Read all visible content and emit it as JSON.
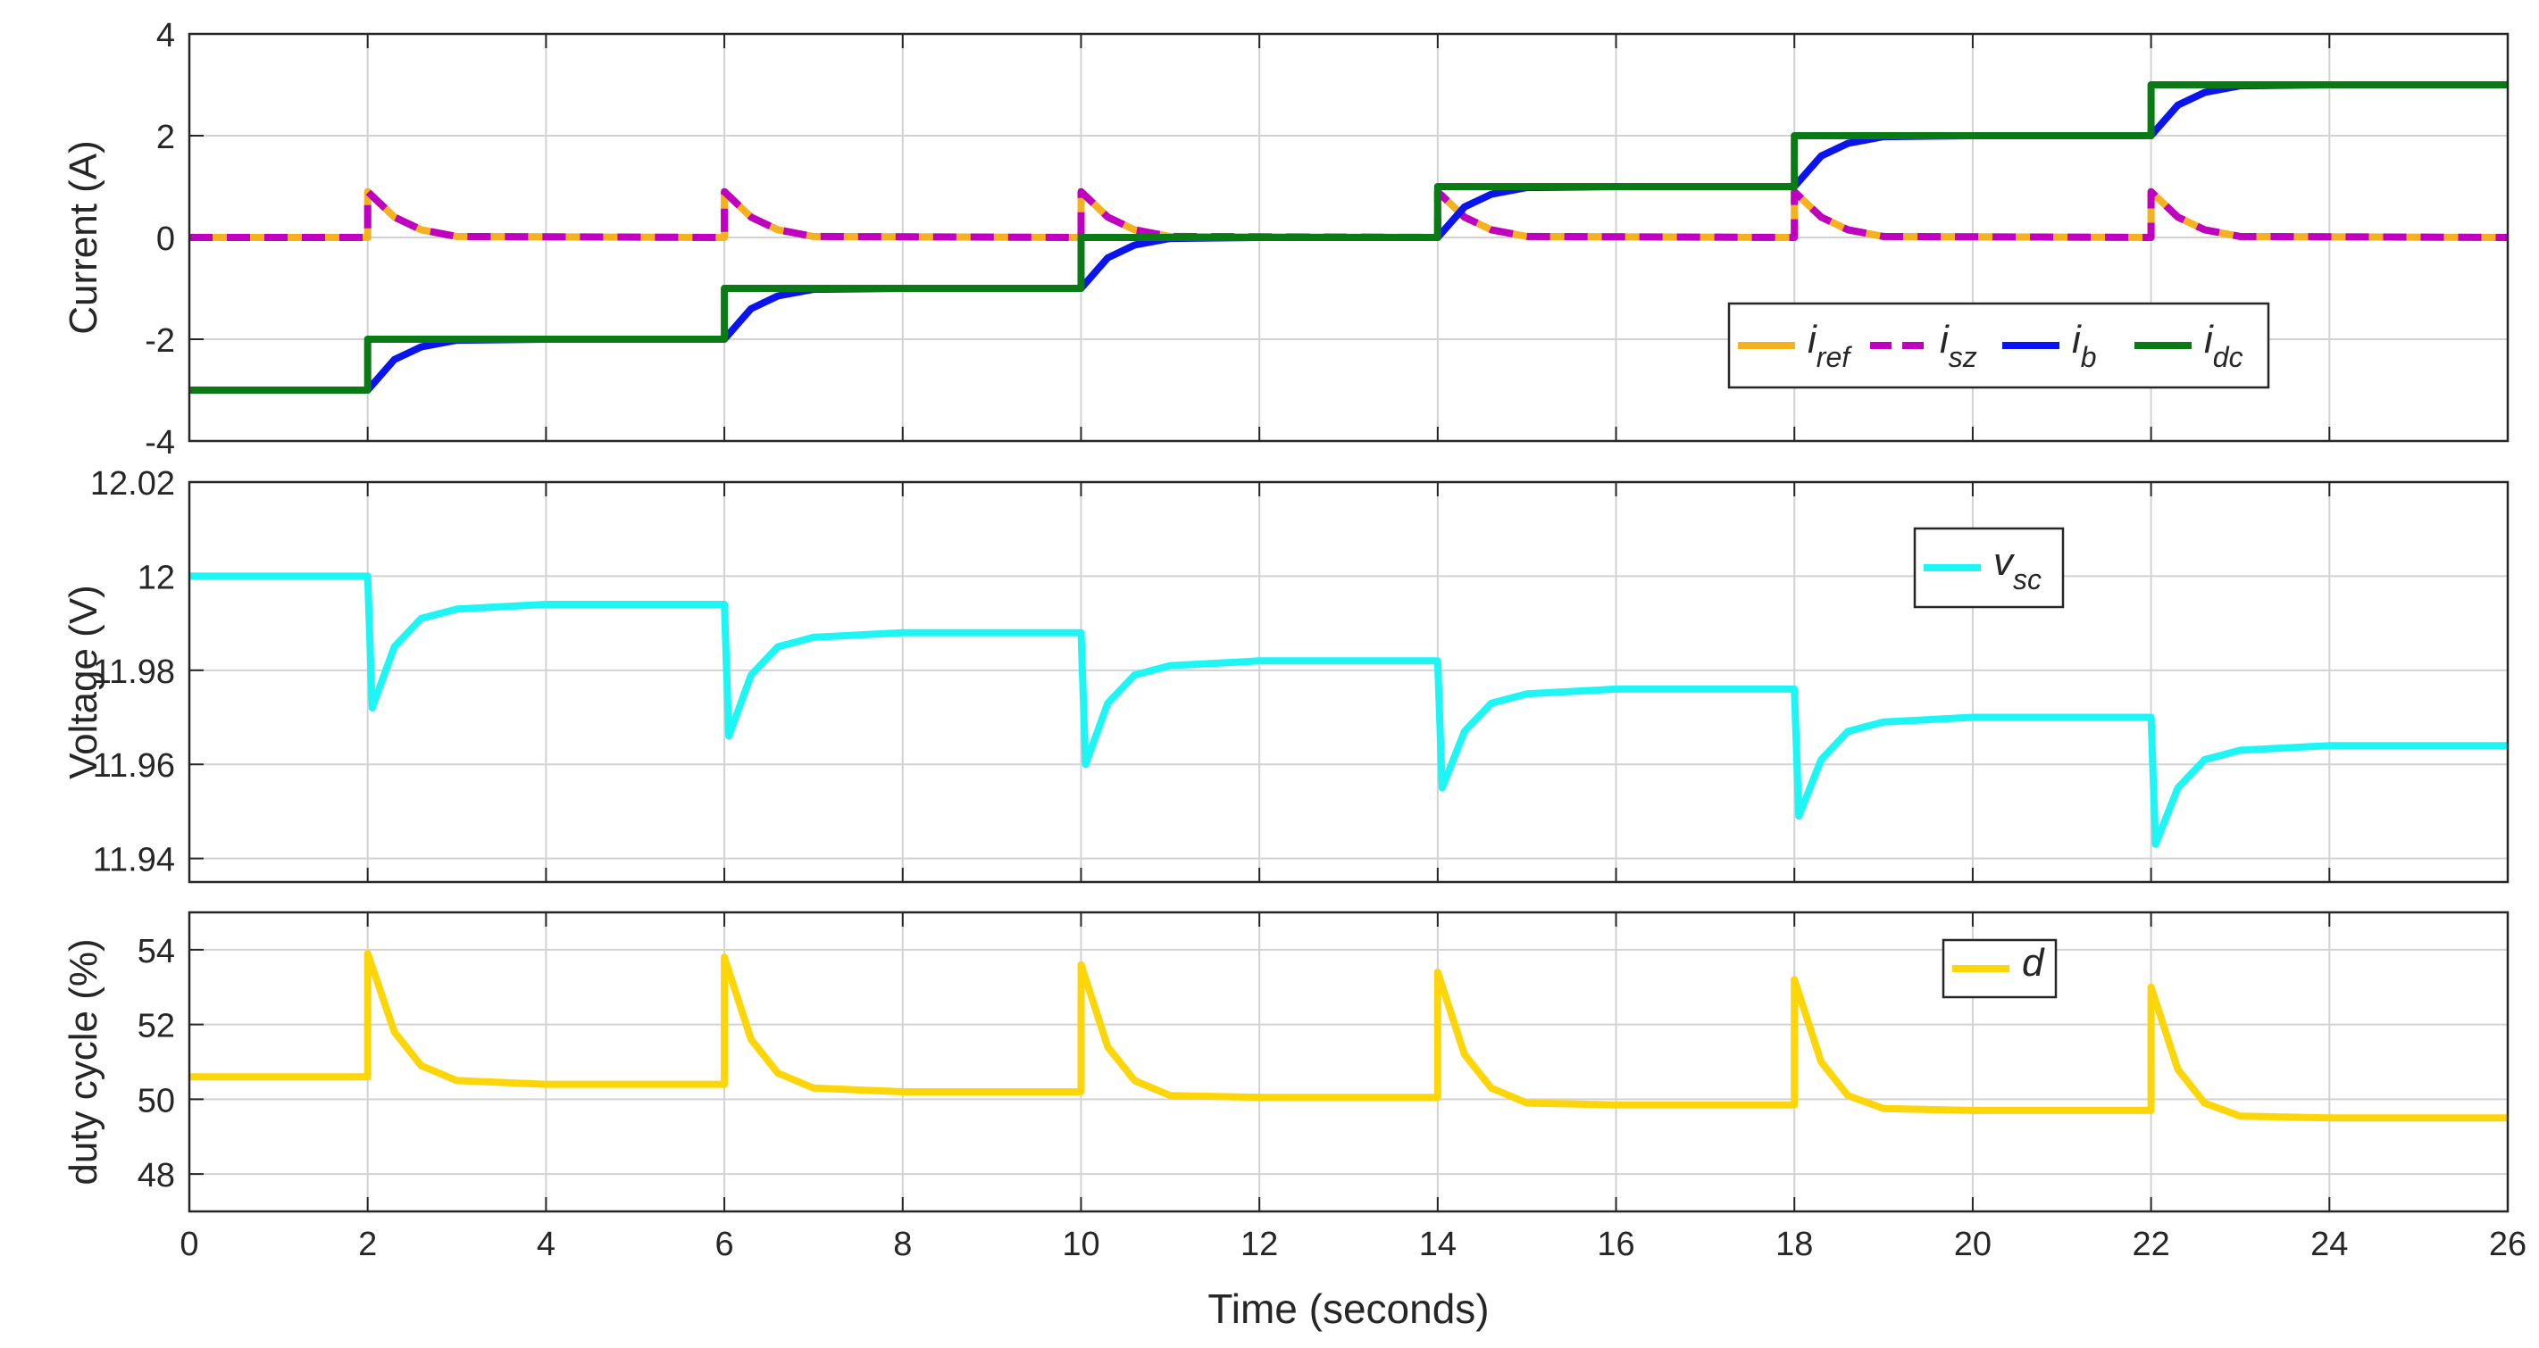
{
  "colors": {
    "i_ref": "#F5B120",
    "i_sz": "#C000C0",
    "i_b": "#0A14F0",
    "i_dc": "#0A7A14",
    "v_sc": "#1EF5F5",
    "d": "#FCD608",
    "grid": "#D2D2D2",
    "axis": "#262626"
  },
  "xaxis": {
    "label": "Time (seconds)",
    "ticks": [
      "0",
      "2",
      "4",
      "6",
      "8",
      "10",
      "12",
      "14",
      "16",
      "18",
      "20",
      "22",
      "24",
      "26"
    ]
  },
  "chart_data": [
    {
      "type": "line",
      "ylabel": "Current (A)",
      "xlim": [
        0,
        26
      ],
      "ylim": [
        -4,
        4
      ],
      "yticks": [
        "4",
        "2",
        "0",
        "-2",
        "-4"
      ],
      "grid": true,
      "legend_position": "right",
      "step_times": [
        2,
        6,
        10,
        14,
        18,
        22
      ],
      "series": [
        {
          "key": "i_ref",
          "name_base": "i",
          "name_sub": "ref",
          "x": [
            0,
            2,
            2,
            2.3,
            2.6,
            3,
            6,
            6,
            6.3,
            6.6,
            7,
            10,
            10,
            10.3,
            10.6,
            11,
            14,
            14,
            14.3,
            14.6,
            15,
            18,
            18,
            18.3,
            18.6,
            19,
            22,
            22,
            22.3,
            22.6,
            23,
            26
          ],
          "y": [
            0,
            0,
            0.9,
            0.4,
            0.15,
            0.02,
            0,
            0.9,
            0.4,
            0.15,
            0.02,
            0,
            0.9,
            0.4,
            0.15,
            0.02,
            0,
            0.9,
            0.4,
            0.15,
            0.02,
            0,
            0.9,
            0.4,
            0.15,
            0.02,
            0,
            0.9,
            0.4,
            0.15,
            0.02,
            0
          ]
        },
        {
          "key": "i_sz",
          "name_base": "i",
          "name_sub": "sz",
          "x": [
            0,
            2,
            2,
            2.3,
            2.6,
            3,
            6,
            6,
            6.3,
            6.6,
            7,
            10,
            10,
            10.3,
            10.6,
            11,
            14,
            14,
            14.3,
            14.6,
            15,
            18,
            18,
            18.3,
            18.6,
            19,
            22,
            22,
            22.3,
            22.6,
            23,
            26
          ],
          "y": [
            0,
            0,
            0.9,
            0.4,
            0.15,
            0.02,
            0,
            0.9,
            0.4,
            0.15,
            0.02,
            0,
            0.9,
            0.4,
            0.15,
            0.02,
            0,
            0.9,
            0.4,
            0.15,
            0.02,
            0,
            0.9,
            0.4,
            0.15,
            0.02,
            0,
            0.9,
            0.4,
            0.15,
            0.02,
            0
          ]
        },
        {
          "key": "i_b",
          "name_base": "i",
          "name_sub": "b",
          "x": [
            0,
            2,
            2.3,
            2.6,
            3,
            4,
            6,
            6.3,
            6.6,
            7,
            8,
            10,
            10.3,
            10.6,
            11,
            12,
            14,
            14.3,
            14.6,
            15,
            16,
            18,
            18.3,
            18.6,
            19,
            20,
            22,
            22.3,
            22.6,
            23,
            24,
            26
          ],
          "y": [
            -3,
            -3,
            -2.4,
            -2.15,
            -2.02,
            -2,
            -2,
            -1.4,
            -1.15,
            -1.02,
            -1,
            -1,
            -0.4,
            -0.15,
            -0.02,
            0,
            0,
            0.6,
            0.85,
            0.98,
            1,
            1,
            1.6,
            1.85,
            1.98,
            2,
            2,
            2.6,
            2.85,
            2.98,
            3,
            3
          ]
        },
        {
          "key": "i_dc",
          "name_base": "i",
          "name_sub": "dc",
          "x": [
            0,
            2,
            2,
            6,
            6,
            10,
            10,
            14,
            14,
            18,
            18,
            22,
            22,
            26
          ],
          "y": [
            -3,
            -3,
            -2,
            -2,
            -1,
            -1,
            0,
            0,
            1,
            1,
            2,
            2,
            3,
            3
          ]
        }
      ]
    },
    {
      "type": "line",
      "ylabel": "Voltage (V)",
      "xlim": [
        0,
        26
      ],
      "ylim": [
        11.935,
        12.02
      ],
      "yticks": [
        "12.02",
        "12",
        "11.98",
        "11.96",
        "11.94"
      ],
      "grid": true,
      "legend_position": "top-right",
      "series": [
        {
          "key": "v_sc",
          "name_base": "v",
          "name_sub": "sc",
          "x": [
            0,
            2,
            2.05,
            2.3,
            2.6,
            3,
            4,
            6,
            6.05,
            6.3,
            6.6,
            7,
            8,
            10,
            10.05,
            10.3,
            10.6,
            11,
            12,
            14,
            14.05,
            14.3,
            14.6,
            15,
            16,
            18,
            18.05,
            18.3,
            18.6,
            19,
            20,
            22,
            22.05,
            22.3,
            22.6,
            23,
            24,
            26
          ],
          "y": [
            12.0,
            12.0,
            11.972,
            11.985,
            11.991,
            11.993,
            11.994,
            11.994,
            11.966,
            11.979,
            11.985,
            11.987,
            11.988,
            11.988,
            11.96,
            11.973,
            11.979,
            11.981,
            11.982,
            11.982,
            11.955,
            11.967,
            11.973,
            11.975,
            11.976,
            11.976,
            11.949,
            11.961,
            11.967,
            11.969,
            11.97,
            11.97,
            11.943,
            11.955,
            11.961,
            11.963,
            11.964,
            11.964
          ]
        }
      ]
    },
    {
      "type": "line",
      "ylabel": "duty cycle (%)",
      "xlim": [
        0,
        26
      ],
      "ylim": [
        47,
        55
      ],
      "yticks": [
        "54",
        "52",
        "50",
        "48"
      ],
      "grid": true,
      "legend_position": "top-right",
      "series": [
        {
          "key": "d",
          "name_base": "d",
          "name_sub": "",
          "x": [
            0,
            2,
            2,
            2.3,
            2.6,
            3,
            4,
            6,
            6,
            6.3,
            6.6,
            7,
            8,
            10,
            10,
            10.3,
            10.6,
            11,
            12,
            14,
            14,
            14.3,
            14.6,
            15,
            16,
            18,
            18,
            18.3,
            18.6,
            19,
            20,
            22,
            22,
            22.3,
            22.6,
            23,
            24,
            26
          ],
          "y": [
            50.6,
            50.6,
            53.9,
            51.8,
            50.9,
            50.5,
            50.4,
            50.4,
            53.8,
            51.6,
            50.7,
            50.3,
            50.2,
            50.2,
            53.6,
            51.4,
            50.5,
            50.1,
            50.05,
            50.05,
            53.4,
            51.2,
            50.3,
            49.9,
            49.85,
            49.85,
            53.2,
            51.0,
            50.1,
            49.75,
            49.7,
            49.7,
            53.0,
            50.8,
            49.9,
            49.55,
            49.5,
            49.5
          ]
        }
      ]
    }
  ]
}
